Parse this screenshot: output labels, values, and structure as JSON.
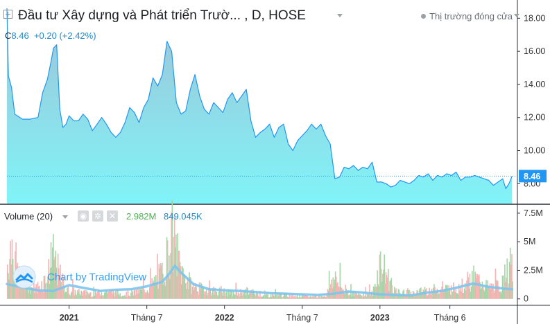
{
  "header": {
    "title": "Đầu tư Xây dựng và Phát triển Trườ...   , D, HOSE",
    "status": "Thị trường đóng cửa",
    "ohlc_prefix": "C",
    "ohlc_value": "8.46",
    "ohlc_change": "+0.20 (+2.42%)"
  },
  "volume_pane": {
    "label": "Volume (20)",
    "value_volume": "2.982M",
    "value_ma": "849.045K"
  },
  "watermark": {
    "text": "Chart by TradingView"
  },
  "colors": {
    "price_line": "#2196f3",
    "area_top": "#9fc2d6",
    "area_bottom": "#80f4f8",
    "last_price_label": "#2196f3",
    "volume_up": "#a5d6a7",
    "volume_down": "#f7b4b4",
    "volume_ma": "#7cc4ee",
    "axis_text": "#333333"
  },
  "chart_data": [
    {
      "type": "area",
      "title": "Đầu tư Xây dựng và Phát triển Trườ...   , D, HOSE",
      "x_tick_labels": [
        "2021",
        "Tháng 7",
        "2022",
        "Tháng 7",
        "2023",
        "Tháng 6"
      ],
      "x_tick_positions": [
        0.1,
        0.6,
        1.1,
        1.6,
        2.1,
        2.55
      ],
      "x_domain": [
        -0.3,
        2.98
      ],
      "y_ticks": [
        8,
        10,
        12,
        14,
        16,
        18
      ],
      "ylim": [
        6.8,
        18.6
      ],
      "last_value": 8.46,
      "last_value_label": "8.46",
      "x": [
        -0.3,
        -0.29,
        -0.27,
        -0.25,
        -0.2,
        -0.15,
        -0.1,
        -0.07,
        -0.04,
        -0.02,
        0.0,
        0.02,
        0.04,
        0.06,
        0.08,
        0.1,
        0.13,
        0.16,
        0.19,
        0.22,
        0.25,
        0.28,
        0.31,
        0.34,
        0.37,
        0.4,
        0.43,
        0.46,
        0.49,
        0.52,
        0.55,
        0.58,
        0.61,
        0.64,
        0.67,
        0.7,
        0.73,
        0.76,
        0.79,
        0.82,
        0.85,
        0.88,
        0.91,
        0.94,
        0.97,
        1.0,
        1.03,
        1.06,
        1.09,
        1.12,
        1.15,
        1.18,
        1.21,
        1.24,
        1.27,
        1.3,
        1.33,
        1.36,
        1.39,
        1.42,
        1.45,
        1.48,
        1.51,
        1.54,
        1.57,
        1.6,
        1.63,
        1.66,
        1.69,
        1.72,
        1.75,
        1.78,
        1.81,
        1.84,
        1.87,
        1.9,
        1.93,
        1.96,
        1.99,
        2.02,
        2.05,
        2.08,
        2.11,
        2.14,
        2.17,
        2.2,
        2.23,
        2.26,
        2.29,
        2.32,
        2.35,
        2.38,
        2.41,
        2.44,
        2.47,
        2.5,
        2.53,
        2.56,
        2.59,
        2.62,
        2.65,
        2.68,
        2.71,
        2.74,
        2.77,
        2.8,
        2.83,
        2.86,
        2.89,
        2.91,
        2.93,
        2.95
      ],
      "values": [
        18.6,
        14.5,
        13.8,
        12.2,
        11.9,
        11.9,
        12.0,
        13.5,
        14.3,
        15.2,
        16.2,
        16.4,
        12.5,
        11.4,
        11.6,
        12.1,
        11.8,
        11.8,
        12.2,
        11.9,
        11.2,
        11.6,
        12.0,
        11.6,
        11.1,
        10.8,
        11.1,
        11.7,
        12.6,
        12.3,
        11.7,
        12.6,
        13.1,
        14.4,
        13.9,
        14.6,
        16.6,
        16.0,
        12.9,
        12.2,
        12.4,
        13.7,
        14.6,
        13.3,
        12.5,
        12.2,
        12.9,
        12.6,
        12.3,
        13.1,
        13.5,
        12.9,
        13.3,
        13.7,
        11.8,
        10.8,
        11.1,
        11.3,
        11.6,
        10.8,
        11.4,
        11.6,
        10.4,
        10.0,
        10.6,
        10.9,
        11.2,
        11.6,
        11.3,
        11.6,
        10.9,
        10.4,
        8.3,
        8.4,
        9.0,
        8.9,
        9.1,
        8.8,
        9.0,
        8.9,
        9.3,
        8.1,
        8.1,
        8.0,
        7.8,
        7.9,
        8.2,
        8.1,
        8.0,
        8.2,
        8.5,
        8.4,
        8.6,
        8.2,
        8.5,
        8.4,
        8.6,
        8.5,
        8.7,
        8.2,
        8.4,
        8.4,
        8.5,
        8.4,
        8.3,
        8.2,
        7.9,
        8.1,
        8.3,
        7.7,
        8.0,
        8.46
      ]
    },
    {
      "type": "bar",
      "title": "Volume (20)",
      "y_ticks": [
        0,
        2500000,
        5000000,
        7500000
      ],
      "y_tick_labels": [
        "0",
        "2.5M",
        "5M",
        "7.5M"
      ],
      "ylim": [
        -500000,
        8100000
      ],
      "volume_points": [
        [
          -0.3,
          3200000
        ],
        [
          -0.27,
          5100000
        ],
        [
          -0.23,
          2100000
        ],
        [
          -0.18,
          1500000
        ],
        [
          -0.12,
          900000
        ],
        [
          -0.05,
          1800000
        ],
        [
          0.0,
          3900000
        ],
        [
          0.03,
          2300000
        ],
        [
          0.08,
          800000
        ],
        [
          0.15,
          600000
        ],
        [
          0.25,
          500000
        ],
        [
          0.35,
          700000
        ],
        [
          0.45,
          400000
        ],
        [
          0.55,
          700000
        ],
        [
          0.62,
          1100000
        ],
        [
          0.7,
          2400000
        ],
        [
          0.76,
          5700000
        ],
        [
          0.79,
          4200000
        ],
        [
          0.82,
          2500000
        ],
        [
          0.88,
          1200000
        ],
        [
          0.95,
          900000
        ],
        [
          1.05,
          700000
        ],
        [
          1.15,
          500000
        ],
        [
          1.25,
          700000
        ],
        [
          1.35,
          300000
        ],
        [
          1.45,
          400000
        ],
        [
          1.55,
          300000
        ],
        [
          1.65,
          200000
        ],
        [
          1.75,
          300000
        ],
        [
          1.8,
          2100000
        ],
        [
          1.85,
          900000
        ],
        [
          1.95,
          400000
        ],
        [
          2.05,
          500000
        ],
        [
          2.1,
          3300000
        ],
        [
          2.2,
          600000
        ],
        [
          2.3,
          500000
        ],
        [
          2.4,
          800000
        ],
        [
          2.5,
          900000
        ],
        [
          2.6,
          1000000
        ],
        [
          2.7,
          1900000
        ],
        [
          2.8,
          1000000
        ],
        [
          2.88,
          1200000
        ],
        [
          2.93,
          2982000
        ]
      ],
      "ma_x": [
        -0.3,
        -0.2,
        -0.1,
        0.0,
        0.1,
        0.2,
        0.3,
        0.4,
        0.5,
        0.6,
        0.7,
        0.75,
        0.78,
        0.82,
        0.9,
        1.0,
        1.1,
        1.2,
        1.3,
        1.4,
        1.5,
        1.6,
        1.7,
        1.8,
        1.9,
        2.0,
        2.1,
        2.2,
        2.3,
        2.4,
        2.5,
        2.6,
        2.7,
        2.8,
        2.9,
        2.95
      ],
      "ma_values": [
        1300000,
        1000000,
        750000,
        700000,
        1200000,
        950000,
        700000,
        800000,
        850000,
        1100000,
        1500000,
        2300000,
        2900000,
        2300000,
        1300000,
        850000,
        750000,
        700000,
        600000,
        500000,
        450000,
        400000,
        350000,
        450000,
        650000,
        550000,
        400000,
        350000,
        300000,
        550000,
        700000,
        1000000,
        1350000,
        1050000,
        900000,
        849045
      ]
    }
  ]
}
